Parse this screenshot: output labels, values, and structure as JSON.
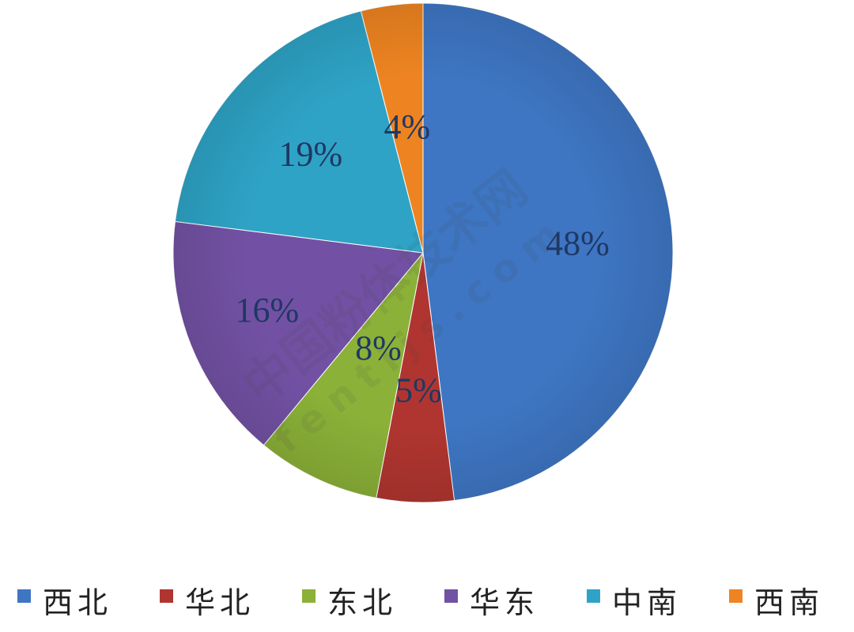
{
  "chart_data": {
    "type": "pie",
    "title": "",
    "start_angle_deg": 0,
    "direction": "clockwise",
    "legend_position": "bottom",
    "slices": [
      {
        "name": "西北",
        "value": 48,
        "label": "48%",
        "color": "#3e76c3"
      },
      {
        "name": "华北",
        "value": 5,
        "label": "5%",
        "color": "#b03530"
      },
      {
        "name": "东北",
        "value": 8,
        "label": "8%",
        "color": "#8bb138"
      },
      {
        "name": "华东",
        "value": 16,
        "label": "16%",
        "color": "#7251a4"
      },
      {
        "name": "中南",
        "value": 19,
        "label": "19%",
        "color": "#2ea3c6"
      },
      {
        "name": "西南",
        "value": 4,
        "label": "4%",
        "color": "#ee8421"
      }
    ]
  },
  "watermark": {
    "line1": "中国粉体技术网",
    "line2": "fentijs.com"
  }
}
